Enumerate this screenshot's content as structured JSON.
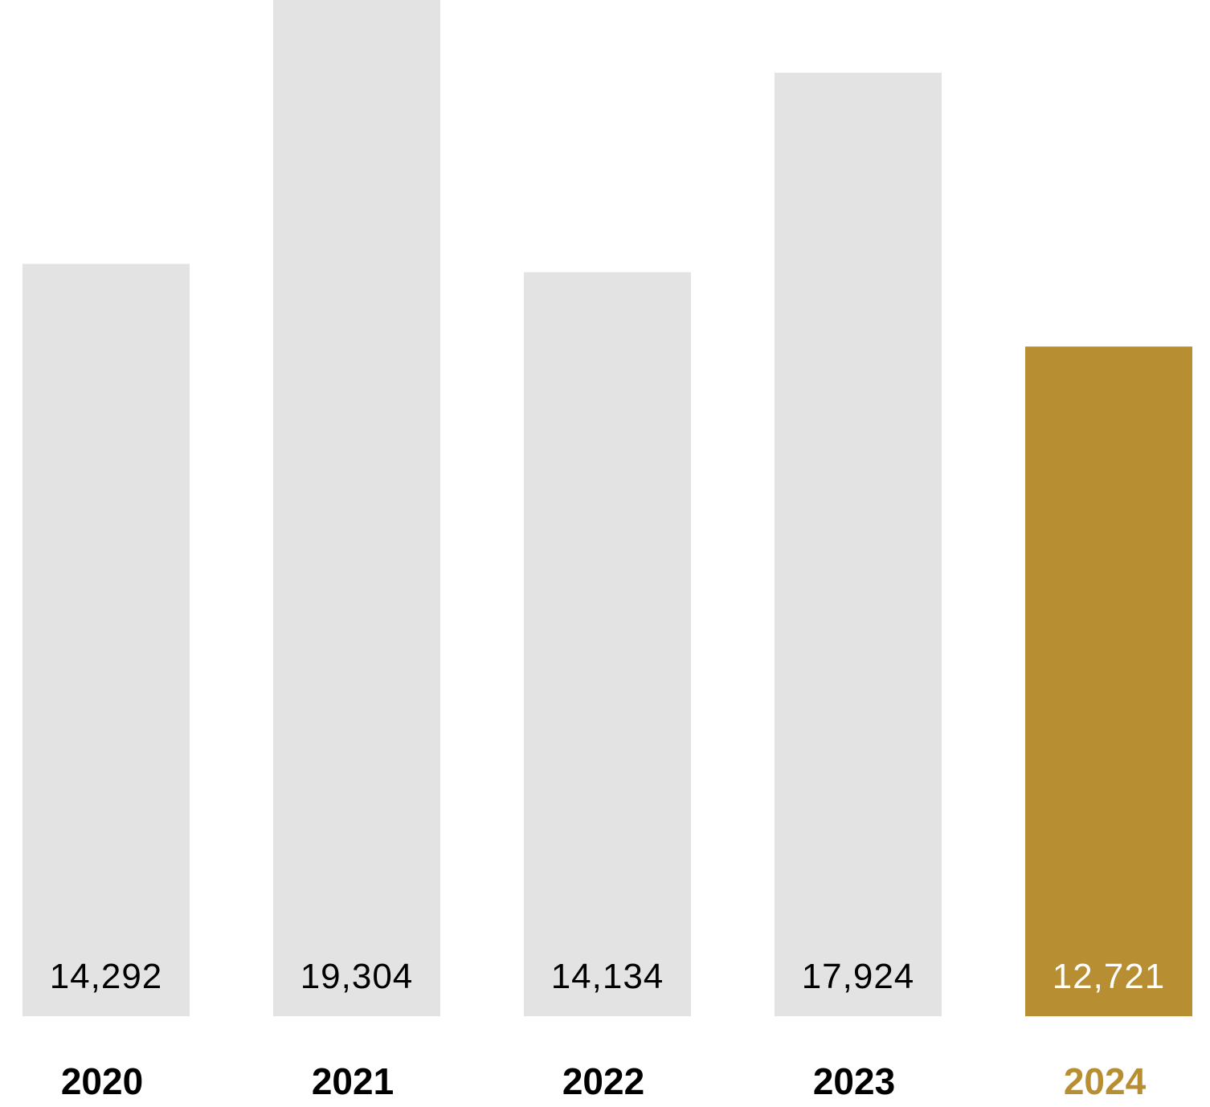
{
  "chart_data": {
    "type": "bar",
    "categories": [
      "2020",
      "2021",
      "2022",
      "2023",
      "2024"
    ],
    "values": [
      14292,
      19304,
      14134,
      17924,
      12721
    ],
    "value_labels": [
      "14,292",
      "19,304",
      "14,134",
      "17,924",
      "12,721"
    ],
    "highlight_index": 4,
    "title": "",
    "xlabel": "",
    "ylabel": "",
    "ylim": [
      0,
      19304
    ],
    "grid": false,
    "legend": "none",
    "colors": {
      "bar": "#e3e3e3",
      "highlight": "#b88e32",
      "label": "#000000",
      "highlight_value_label": "#ffffff",
      "highlight_category_label": "#b88e32"
    }
  }
}
